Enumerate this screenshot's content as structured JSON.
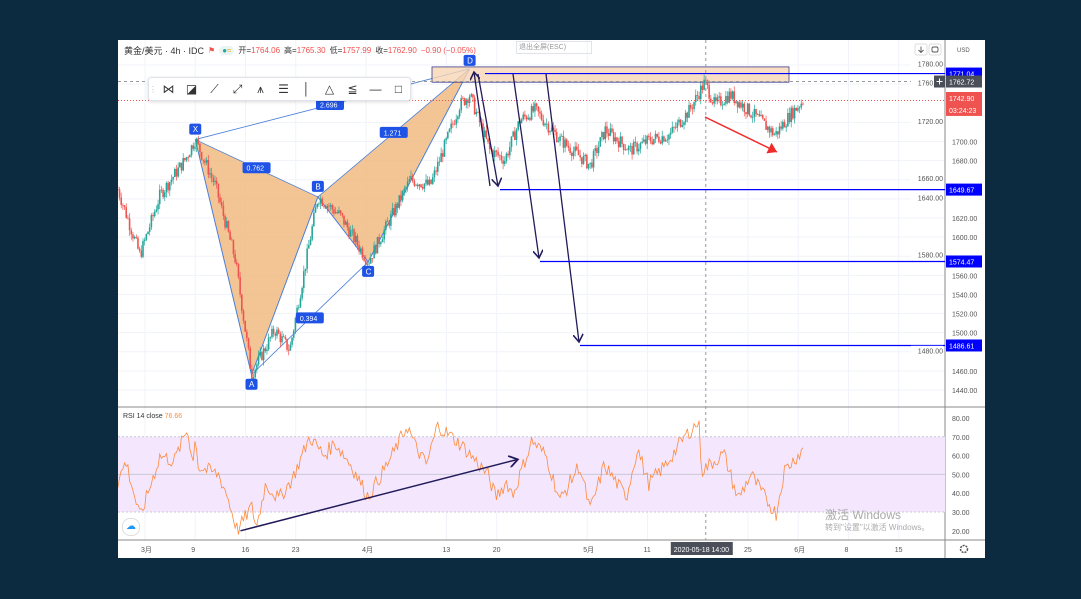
{
  "header": {
    "symbol": "黄金/美元 · 4h · IDC",
    "open_label": "开=",
    "open": "1764.06",
    "high_label": "高=",
    "high": "1765.30",
    "low_label": "低=",
    "low": "1757.99",
    "close_label": "收=",
    "close": "1762.90",
    "change": "−0.90 (−0.05%)",
    "exit_fullscreen": "退出全屏(ESC)",
    "currency": "USD"
  },
  "toolbar": {
    "icons": [
      "xabcd-pattern-icon",
      "cypher-pattern-icon",
      "trend-line-icon",
      "ray-icon",
      "head-shoulders-icon",
      "parallel-channel-icon",
      "vertical-line-icon",
      "triangle-pattern-icon",
      "fib-fan-icon",
      "horizontal-ray-icon",
      "rectangle-icon"
    ]
  },
  "price_axis": {
    "ticks": [
      "1780.00",
      "1760.00",
      "1720.00",
      "1700.00",
      "1680.00",
      "1660.00",
      "1640.00",
      "1620.00",
      "1600.00",
      "1580.00",
      "1560.00",
      "1540.00",
      "1520.00",
      "1500.00",
      "1480.00",
      "1460.00",
      "1440.00"
    ],
    "tick_values": [
      1780,
      1760,
      1720,
      1700,
      1680,
      1660,
      1640,
      1620,
      1600,
      1580,
      1560,
      1540,
      1520,
      1500,
      1480,
      1460,
      1440
    ],
    "labels": {
      "level_top": "1771.04",
      "crosshair": "1762.72",
      "last": "1742.90",
      "countdown": "03:24:23",
      "level_1": "1649.67",
      "level_2": "1574.47",
      "level_3": "1486.61"
    }
  },
  "rsi": {
    "label": "RSI 14 close",
    "value": "76.66",
    "ticks": [
      "80.00",
      "70.00",
      "60.00",
      "50.00",
      "40.00",
      "30.00",
      "20.00"
    ],
    "tick_values": [
      80,
      70,
      60,
      50,
      40,
      30,
      20
    ]
  },
  "time_axis": {
    "ticks": [
      {
        "label": "3月",
        "t": 0
      },
      {
        "label": "9",
        "t": 5
      },
      {
        "label": "16",
        "t": 10
      },
      {
        "label": "23",
        "t": 15
      },
      {
        "label": "4月",
        "t": 22
      },
      {
        "label": "13",
        "t": 30
      },
      {
        "label": "20",
        "t": 35
      },
      {
        "label": "5月",
        "t": 44
      },
      {
        "label": "11",
        "t": 50
      },
      {
        "label": "25",
        "t": 60
      },
      {
        "label": "6月",
        "t": 65
      },
      {
        "label": "8",
        "t": 70
      },
      {
        "label": "15",
        "t": 75
      }
    ],
    "crosshair_label": "2020-05-18  14:00",
    "crosshair_t": 55.8
  },
  "pattern": {
    "points": [
      {
        "label": "X",
        "t": 5,
        "p": 1702
      },
      {
        "label": "A",
        "t": 10.6,
        "p": 1456
      },
      {
        "label": "B",
        "t": 17.2,
        "p": 1642
      },
      {
        "label": "C",
        "t": 22.2,
        "p": 1574
      },
      {
        "label": "D",
        "t": 32.3,
        "p": 1776
      }
    ],
    "ratios": [
      "0.762",
      "0.394",
      "1.271",
      "2.696"
    ]
  },
  "watermark": {
    "line1": "激活 Windows",
    "line2": "转到\"设置\"以激活 Windows。"
  },
  "colors": {
    "up": "#26a69a",
    "down": "#ef5350",
    "pattern": "#f0b67a",
    "level": "#0000ff",
    "rsi": "#ff8a3d"
  },
  "chart_data": {
    "type": "candlestick",
    "title": "黄金/美元 4h",
    "ylim": [
      1430,
      1800
    ],
    "price_path": [
      [
        -2.7,
        1650
      ],
      [
        -0.5,
        1581
      ],
      [
        1.5,
        1644
      ],
      [
        4,
        1681
      ],
      [
        5,
        1702
      ],
      [
        7,
        1654
      ],
      [
        9,
        1576
      ],
      [
        10.6,
        1456
      ],
      [
        12.9,
        1503
      ],
      [
        14.4,
        1482
      ],
      [
        17.2,
        1642
      ],
      [
        19.4,
        1623
      ],
      [
        22.2,
        1574
      ],
      [
        26.4,
        1660
      ],
      [
        28.4,
        1654
      ],
      [
        31.3,
        1738
      ],
      [
        32.3,
        1749
      ],
      [
        34.3,
        1691
      ],
      [
        35.8,
        1681
      ],
      [
        37.3,
        1722
      ],
      [
        38.8,
        1733
      ],
      [
        41.3,
        1702
      ],
      [
        44.3,
        1675
      ],
      [
        45.8,
        1712
      ],
      [
        48.3,
        1691
      ],
      [
        50.3,
        1702
      ],
      [
        52.2,
        1707
      ],
      [
        54.2,
        1733
      ],
      [
        55.7,
        1762
      ],
      [
        56.7,
        1738
      ],
      [
        58.2,
        1749
      ],
      [
        61.2,
        1722
      ],
      [
        62.7,
        1707
      ],
      [
        64.2,
        1728
      ],
      [
        65.5,
        1743
      ]
    ],
    "rsi_path": [
      [
        -2.7,
        46
      ],
      [
        -1.9,
        57
      ],
      [
        -0.5,
        27
      ],
      [
        1.5,
        60
      ],
      [
        2.9,
        57
      ],
      [
        4.2,
        74
      ],
      [
        4.8,
        57
      ],
      [
        5.05,
        72
      ],
      [
        5.3,
        54
      ],
      [
        7.3,
        50
      ],
      [
        8.1,
        40
      ],
      [
        9.2,
        20
      ],
      [
        10.6,
        33
      ],
      [
        11.1,
        22
      ],
      [
        12,
        45
      ],
      [
        13.3,
        37
      ],
      [
        14.7,
        48
      ],
      [
        16.4,
        70
      ],
      [
        17.8,
        60
      ],
      [
        18.9,
        67
      ],
      [
        20.5,
        55
      ],
      [
        22.2,
        38
      ],
      [
        24.4,
        58
      ],
      [
        26.1,
        76
      ],
      [
        26.9,
        65
      ],
      [
        28,
        55
      ],
      [
        29.1,
        76
      ],
      [
        30.5,
        70
      ],
      [
        31.6,
        65
      ],
      [
        34.1,
        50
      ],
      [
        34.9,
        38
      ],
      [
        36,
        46
      ],
      [
        36.6,
        39
      ],
      [
        38.5,
        68
      ],
      [
        39.9,
        60
      ],
      [
        41.3,
        36
      ],
      [
        43.2,
        55
      ],
      [
        44.3,
        31
      ],
      [
        45.7,
        55
      ],
      [
        47.9,
        38
      ],
      [
        49,
        64
      ],
      [
        50.1,
        45
      ],
      [
        51.8,
        55
      ],
      [
        53.7,
        70
      ],
      [
        55.1,
        78
      ],
      [
        55.4,
        52
      ],
      [
        57.6,
        61
      ],
      [
        59,
        37
      ],
      [
        60.3,
        50
      ],
      [
        61.4,
        40
      ],
      [
        62.8,
        29
      ],
      [
        63.6,
        52
      ],
      [
        65.6,
        64
      ]
    ],
    "levels": [
      1771.04,
      1649.67,
      1574.47,
      1486.61
    ],
    "rsi_band": [
      30,
      70
    ]
  }
}
